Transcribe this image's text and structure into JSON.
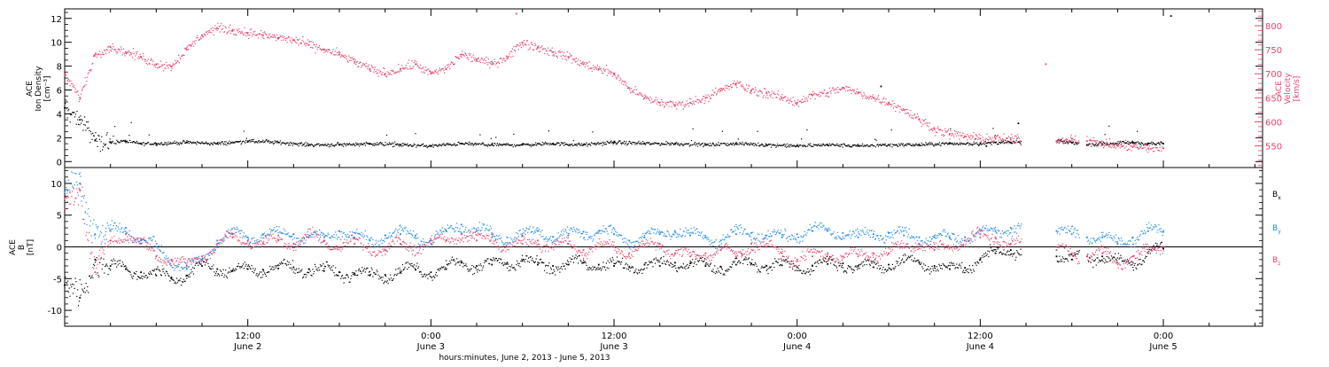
{
  "chart_data": [
    {
      "type": "scatter",
      "panel": "top",
      "y_left_label_lines": [
        "ACE",
        "Ion Density",
        "[cm⁻³]"
      ],
      "y_right_label_lines": [
        "ACE",
        "Velocity",
        "[km/s]"
      ],
      "ylim_left": [
        -0.5,
        12.8
      ],
      "ylim_right": [
        505,
        835
      ],
      "y_left_ticks": [
        0,
        2,
        4,
        6,
        8,
        10,
        12
      ],
      "y_right_ticks": [
        550,
        600,
        650,
        700,
        750,
        800
      ],
      "grid": false,
      "colors": {
        "density": "#000000",
        "velocity": "#e8436b"
      },
      "series": [
        {
          "axis": "left",
          "color": "#000000",
          "x_hours": [
            0,
            1,
            2,
            3,
            4,
            5,
            6,
            8,
            10,
            12,
            14,
            16,
            18,
            20,
            22,
            24,
            26,
            28,
            30,
            32,
            34,
            36,
            38,
            40,
            42,
            44,
            46,
            48,
            50,
            52,
            54,
            56,
            58,
            60,
            61,
            62,
            65,
            66,
            67,
            68,
            70,
            71,
            72
          ],
          "values": [
            4.5,
            3.5,
            1.8,
            1.6,
            1.7,
            1.5,
            1.5,
            1.6,
            1.5,
            1.7,
            1.6,
            1.4,
            1.4,
            1.5,
            1.4,
            1.3,
            1.5,
            1.4,
            1.4,
            1.5,
            1.4,
            1.6,
            1.5,
            1.5,
            1.4,
            1.5,
            1.4,
            1.3,
            1.4,
            1.3,
            1.4,
            1.4,
            1.5,
            1.5,
            1.6,
            1.6,
            1.7,
            1.6,
            1.4,
            1.5,
            1.6,
            1.5,
            1.5
          ]
        },
        {
          "axis": "right",
          "color": "#e8436b",
          "x_hours": [
            0,
            1,
            2,
            3,
            4,
            5,
            6,
            7,
            8,
            9,
            10,
            11,
            12,
            13,
            14,
            15,
            16,
            17,
            18,
            19,
            20,
            21,
            22,
            23,
            24,
            25,
            26,
            27,
            28,
            29,
            30,
            31,
            32,
            33,
            34,
            35,
            36,
            37,
            38,
            39,
            40,
            41,
            42,
            43,
            44,
            45,
            46,
            47,
            48,
            49,
            50,
            51,
            52,
            53,
            54,
            55,
            56,
            57,
            58,
            59,
            60,
            61,
            62,
            65,
            66,
            67,
            68,
            69,
            70,
            71,
            72
          ],
          "values": [
            700,
            650,
            740,
            755,
            745,
            735,
            720,
            715,
            750,
            780,
            795,
            790,
            785,
            780,
            775,
            770,
            760,
            750,
            740,
            725,
            710,
            700,
            710,
            720,
            700,
            710,
            740,
            730,
            720,
            735,
            765,
            755,
            745,
            735,
            720,
            710,
            700,
            670,
            650,
            640,
            635,
            640,
            650,
            665,
            680,
            665,
            660,
            650,
            640,
            655,
            660,
            670,
            660,
            650,
            640,
            625,
            605,
            585,
            575,
            570,
            565,
            565,
            563,
            560,
            565,
            560,
            555,
            550,
            548,
            545,
            545
          ]
        },
        {
          "axis": "left",
          "color": "#000000",
          "x_hours": [
            53.5,
            60.4,
            62.5,
            72.5
          ],
          "values": [
            6.3,
            1.3,
            3.2,
            12.2
          ]
        },
        {
          "axis": "right",
          "color": "#e8436b",
          "x_hours": [
            29.6,
            64.3
          ],
          "values": [
            825,
            720
          ]
        }
      ]
    },
    {
      "type": "scatter",
      "panel": "bottom",
      "y_left_label_lines": [
        "ACE",
        "B",
        "[nT]"
      ],
      "ylim": [
        -12.5,
        12.5
      ],
      "y_ticks": [
        -10,
        -5,
        0,
        5,
        10
      ],
      "zero_line": true,
      "grid": false,
      "legend": [
        "B",
        "B",
        "B"
      ],
      "legend_subscripts": [
        "x",
        "y",
        "z"
      ],
      "colors": {
        "Bx": "#000000",
        "By": "#1e88e5",
        "Bz": "#e8436b"
      },
      "series": [
        {
          "color": "#000000",
          "x_hours": [
            0,
            1,
            2,
            3,
            4,
            5,
            6,
            7,
            8,
            9,
            10,
            11,
            12,
            13,
            14,
            15,
            16,
            17,
            18,
            19,
            20,
            21,
            22,
            23,
            24,
            25,
            26,
            27,
            28,
            29,
            30,
            31,
            32,
            33,
            34,
            35,
            36,
            37,
            38,
            39,
            40,
            41,
            42,
            43,
            44,
            45,
            46,
            47,
            48,
            49,
            50,
            51,
            52,
            53,
            54,
            55,
            56,
            57,
            58,
            59,
            60,
            61,
            62,
            65,
            66,
            67,
            68,
            69,
            70,
            71,
            72
          ],
          "values": [
            -6,
            -8,
            -2,
            -3,
            -3.5,
            -4,
            -4.5,
            -4.8,
            -4.5,
            -3,
            -3.5,
            -3.8,
            -3.5,
            -3.6,
            -3.4,
            -3.2,
            -3.5,
            -3.8,
            -4,
            -4.2,
            -4.5,
            -4.4,
            -4.0,
            -3.6,
            -4,
            -3.5,
            -2.5,
            -3,
            -2.8,
            -2.5,
            -2.2,
            -2.8,
            -3,
            -2.8,
            -2.5,
            -2.8,
            -3.0,
            -3.2,
            -2.8,
            -3.0,
            -2.5,
            -2.6,
            -3,
            -3.1,
            -2.8,
            -2.6,
            -3,
            -2.9,
            -3.2,
            -3,
            -2.7,
            -2.6,
            -3,
            -3.2,
            -2.8,
            -2.4,
            -2.4,
            -3,
            -3.5,
            -3.3,
            -2,
            -1,
            -0.5,
            -1.5,
            -2,
            -1.5,
            -1.5,
            -2.5,
            -2.5,
            -1,
            -0.3
          ]
        },
        {
          "color": "#1e88e5",
          "x_hours": [
            0,
            1,
            2,
            3,
            4,
            5,
            6,
            7,
            8,
            9,
            10,
            11,
            12,
            13,
            14,
            15,
            16,
            17,
            18,
            19,
            20,
            21,
            22,
            23,
            24,
            25,
            26,
            27,
            28,
            29,
            30,
            31,
            32,
            33,
            34,
            35,
            36,
            37,
            38,
            39,
            40,
            41,
            42,
            43,
            44,
            45,
            46,
            47,
            48,
            49,
            50,
            51,
            52,
            53,
            54,
            55,
            56,
            57,
            58,
            59,
            60,
            61,
            62,
            65,
            66,
            67,
            68,
            69,
            70,
            71,
            72
          ],
          "values": [
            9,
            10,
            2,
            2.5,
            3,
            1,
            0,
            -2,
            -3.5,
            -2,
            1,
            2,
            1.5,
            2,
            1.8,
            2,
            1.5,
            1.5,
            2.5,
            1.5,
            1,
            1.8,
            2,
            1.8,
            1,
            2.5,
            3.5,
            2.5,
            2,
            1.5,
            1.8,
            2.5,
            1.6,
            1.8,
            2.4,
            2.5,
            2,
            1,
            1.5,
            2,
            2.5,
            1.8,
            1.5,
            1,
            2,
            2.2,
            1.8,
            1.5,
            2,
            2.5,
            2.5,
            2.2,
            1.5,
            2,
            2.2,
            1.8,
            1.5,
            1.5,
            1.4,
            1.5,
            2,
            2.5,
            3,
            2.5,
            2.0,
            1.5,
            1.5,
            0.5,
            1.5,
            2.5,
            2.5
          ]
        },
        {
          "color": "#e8436b",
          "x_hours": [
            0,
            1,
            2,
            3,
            4,
            5,
            6,
            7,
            8,
            9,
            10,
            11,
            12,
            13,
            14,
            15,
            16,
            17,
            18,
            19,
            20,
            21,
            22,
            23,
            24,
            25,
            26,
            27,
            28,
            29,
            30,
            31,
            32,
            33,
            34,
            35,
            36,
            37,
            38,
            39,
            40,
            41,
            42,
            43,
            44,
            45,
            46,
            47,
            48,
            49,
            50,
            51,
            52,
            53,
            54,
            55,
            56,
            57,
            58,
            59,
            60,
            61,
            62,
            65,
            66,
            67,
            68,
            69,
            70,
            71,
            72
          ],
          "values": [
            6,
            9,
            -4,
            1,
            2,
            0.5,
            -1.5,
            -2,
            -3,
            -1.5,
            0.5,
            1.5,
            1,
            0.5,
            1,
            0.5,
            1.5,
            1,
            0,
            0.5,
            0,
            -0.5,
            0.5,
            0,
            0.5,
            1,
            2,
            1,
            1.5,
            0,
            0.5,
            1,
            0,
            0.5,
            -0.5,
            0,
            0,
            -1,
            0,
            0.5,
            -1,
            -1.5,
            -1,
            -0.5,
            -1.5,
            0.5,
            0,
            -1,
            -2,
            -1.5,
            -1,
            -1.5,
            -1.5,
            -1,
            -1,
            0,
            0.5,
            -0.5,
            0,
            1,
            1.5,
            1.5,
            0.5,
            -0.5,
            -1,
            -1.5,
            -1,
            -2.5,
            -1.5,
            -1,
            0
          ]
        }
      ]
    }
  ],
  "x_axis": {
    "range_hours": [
      0,
      78.5
    ],
    "tick_hours": [
      12,
      24,
      36,
      48,
      60,
      72
    ],
    "tick_time_labels": [
      "12:00",
      "0:00",
      "12:00",
      "0:00",
      "12:00",
      "0:00"
    ],
    "tick_date_labels": [
      "June 2",
      "June 3",
      "June 3",
      "June 4",
      "June 4",
      "June 5"
    ],
    "xlabel": "hours:minutes, June  2, 2013 - June  5, 2013"
  }
}
